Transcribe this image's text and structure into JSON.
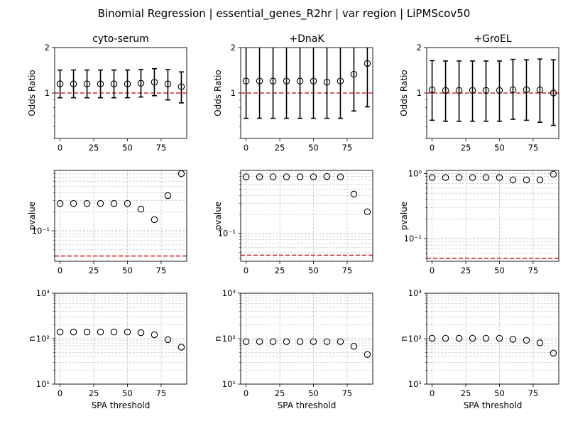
{
  "figure": {
    "suptitle": "Binomial Regression | essential_genes_R2hr | var region | LiPMScov50",
    "colors": {
      "marker": "#000000",
      "refline": "#d62728",
      "grid": "#b0b0b0"
    }
  },
  "chart_data": [
    {
      "type": "scatter",
      "row": 0,
      "col": 0,
      "title": "cyto-serum",
      "ylabel": "Odds Ratio",
      "xlabel": "",
      "yscale": "log",
      "xlim": [
        -4,
        94
      ],
      "ylim": [
        0.5,
        2
      ],
      "yticks": [
        1,
        2
      ],
      "ytick_labels": [
        "1",
        "2"
      ],
      "xticks": [
        0,
        25,
        50,
        75
      ],
      "xtick_labels": [
        "0",
        "25",
        "50",
        "75"
      ],
      "grid": false,
      "refline": 1,
      "x": [
        0,
        10,
        20,
        30,
        40,
        50,
        60,
        70,
        80,
        90
      ],
      "y": [
        1.15,
        1.15,
        1.15,
        1.15,
        1.15,
        1.15,
        1.16,
        1.18,
        1.15,
        1.1
      ],
      "err_low": [
        0.93,
        0.93,
        0.93,
        0.93,
        0.93,
        0.93,
        0.94,
        0.96,
        0.9,
        0.86
      ],
      "err_high": [
        1.42,
        1.42,
        1.42,
        1.42,
        1.42,
        1.42,
        1.43,
        1.45,
        1.43,
        1.38
      ]
    },
    {
      "type": "scatter",
      "row": 0,
      "col": 1,
      "title": "+DnaK",
      "ylabel": "Odds Ratio",
      "xlabel": "",
      "yscale": "log",
      "xlim": [
        -4,
        94
      ],
      "ylim": [
        0.5,
        2
      ],
      "yticks": [
        1,
        2
      ],
      "ytick_labels": [
        "1",
        "2"
      ],
      "xticks": [
        0,
        25,
        50,
        75
      ],
      "xtick_labels": [
        "0",
        "25",
        "50",
        "75"
      ],
      "grid": false,
      "refline": 1,
      "x": [
        0,
        10,
        20,
        30,
        40,
        50,
        60,
        70,
        80,
        90
      ],
      "y": [
        1.2,
        1.2,
        1.2,
        1.2,
        1.2,
        1.2,
        1.18,
        1.2,
        1.33,
        1.57
      ],
      "err_low": [
        0.68,
        0.68,
        0.68,
        0.68,
        0.68,
        0.68,
        0.68,
        0.68,
        0.76,
        0.81
      ],
      "err_high": [
        2.05,
        2.05,
        2.05,
        2.05,
        2.05,
        2.05,
        2.05,
        2.05,
        2.05,
        2.05
      ]
    },
    {
      "type": "scatter",
      "row": 0,
      "col": 2,
      "title": "+GroEL",
      "ylabel": "Odds Ratio",
      "xlabel": "",
      "yscale": "log",
      "xlim": [
        -4,
        94
      ],
      "ylim": [
        0.5,
        2
      ],
      "yticks": [
        1,
        2
      ],
      "ytick_labels": [
        "1",
        "2"
      ],
      "xticks": [
        0,
        25,
        50,
        75
      ],
      "xtick_labels": [
        "0",
        "25",
        "50",
        "75"
      ],
      "grid": false,
      "refline": 1,
      "x": [
        0,
        10,
        20,
        30,
        40,
        50,
        60,
        70,
        80,
        90
      ],
      "y": [
        1.05,
        1.04,
        1.04,
        1.04,
        1.04,
        1.04,
        1.05,
        1.05,
        1.05,
        1.0
      ],
      "err_low": [
        0.66,
        0.65,
        0.65,
        0.65,
        0.65,
        0.65,
        0.67,
        0.66,
        0.64,
        0.61
      ],
      "err_high": [
        1.64,
        1.63,
        1.63,
        1.63,
        1.63,
        1.63,
        1.67,
        1.66,
        1.68,
        1.66
      ]
    },
    {
      "type": "scatter",
      "row": 1,
      "col": 0,
      "title": "",
      "ylabel": "pvalue",
      "xlabel": "",
      "yscale": "log",
      "xlim": [
        -4,
        94
      ],
      "ylim": [
        0.033,
        0.9
      ],
      "yticks": [
        0.1
      ],
      "ytick_labels": [
        "10⁻¹"
      ],
      "xticks": [
        0,
        25,
        50,
        75
      ],
      "xtick_labels": [
        "0",
        "25",
        "50",
        "75"
      ],
      "grid": true,
      "refline": 0.04,
      "x": [
        0,
        10,
        20,
        30,
        40,
        50,
        60,
        70,
        80,
        90
      ],
      "y": [
        0.27,
        0.27,
        0.27,
        0.27,
        0.27,
        0.27,
        0.22,
        0.15,
        0.36,
        0.8
      ]
    },
    {
      "type": "scatter",
      "row": 1,
      "col": 1,
      "title": "",
      "ylabel": "pvalue",
      "xlabel": "",
      "yscale": "log",
      "xlim": [
        -4,
        94
      ],
      "ylim": [
        0.036,
        1.0
      ],
      "yticks": [
        0.1
      ],
      "ytick_labels": [
        "10⁻¹"
      ],
      "xticks": [
        0,
        25,
        50,
        75
      ],
      "xtick_labels": [
        "0",
        "25",
        "50",
        "75"
      ],
      "grid": true,
      "refline": 0.045,
      "x": [
        0,
        10,
        20,
        30,
        40,
        50,
        60,
        70,
        80,
        90
      ],
      "y": [
        0.79,
        0.79,
        0.79,
        0.79,
        0.79,
        0.79,
        0.8,
        0.79,
        0.42,
        0.22
      ]
    },
    {
      "type": "scatter",
      "row": 1,
      "col": 2,
      "title": "",
      "ylabel": "pvalue",
      "xlabel": "",
      "yscale": "log",
      "xlim": [
        -4,
        94
      ],
      "ylim": [
        0.045,
        1.12
      ],
      "yticks": [
        0.1,
        1
      ],
      "ytick_labels": [
        "10⁻¹",
        "10⁰"
      ],
      "xticks": [
        0,
        25,
        50,
        75
      ],
      "xtick_labels": [
        "0",
        "25",
        "50",
        "75"
      ],
      "grid": true,
      "refline": 0.05,
      "x": [
        0,
        10,
        20,
        30,
        40,
        50,
        60,
        70,
        80,
        90
      ],
      "y": [
        0.87,
        0.87,
        0.87,
        0.87,
        0.87,
        0.87,
        0.8,
        0.8,
        0.8,
        0.98
      ]
    },
    {
      "type": "scatter",
      "row": 2,
      "col": 0,
      "title": "",
      "ylabel": "n",
      "xlabel": "SPA threshold",
      "yscale": "log",
      "xlim": [
        -4,
        94
      ],
      "ylim": [
        10,
        1000
      ],
      "yticks": [
        10,
        100,
        1000
      ],
      "ytick_labels": [
        "10¹",
        "10²",
        "10³"
      ],
      "xticks": [
        0,
        25,
        50,
        75
      ],
      "xtick_labels": [
        "0",
        "25",
        "50",
        "75"
      ],
      "grid": true,
      "refline": null,
      "x": [
        0,
        10,
        20,
        30,
        40,
        50,
        60,
        70,
        80,
        90
      ],
      "y": [
        140,
        140,
        140,
        140,
        140,
        140,
        135,
        122,
        95,
        65
      ]
    },
    {
      "type": "scatter",
      "row": 2,
      "col": 1,
      "title": "",
      "ylabel": "n",
      "xlabel": "SPA threshold",
      "yscale": "log",
      "xlim": [
        -4,
        94
      ],
      "ylim": [
        10,
        1000
      ],
      "yticks": [
        10,
        100,
        1000
      ],
      "ytick_labels": [
        "10¹",
        "10²",
        "10³"
      ],
      "xticks": [
        0,
        25,
        50,
        75
      ],
      "xtick_labels": [
        "0",
        "25",
        "50",
        "75"
      ],
      "grid": true,
      "refline": null,
      "x": [
        0,
        10,
        20,
        30,
        40,
        50,
        60,
        70,
        80,
        90
      ],
      "y": [
        86,
        86,
        86,
        86,
        86,
        86,
        86,
        86,
        68,
        45
      ]
    },
    {
      "type": "scatter",
      "row": 2,
      "col": 2,
      "title": "",
      "ylabel": "n",
      "xlabel": "SPA threshold",
      "yscale": "log",
      "xlim": [
        -4,
        94
      ],
      "ylim": [
        10,
        1000
      ],
      "yticks": [
        10,
        100,
        1000
      ],
      "ytick_labels": [
        "10¹",
        "10²",
        "10³"
      ],
      "xticks": [
        0,
        25,
        50,
        75
      ],
      "xtick_labels": [
        "0",
        "25",
        "50",
        "75"
      ],
      "grid": true,
      "refline": null,
      "x": [
        0,
        10,
        20,
        30,
        40,
        50,
        60,
        70,
        80,
        90
      ],
      "y": [
        102,
        102,
        102,
        102,
        102,
        102,
        97,
        92,
        81,
        48
      ]
    }
  ]
}
